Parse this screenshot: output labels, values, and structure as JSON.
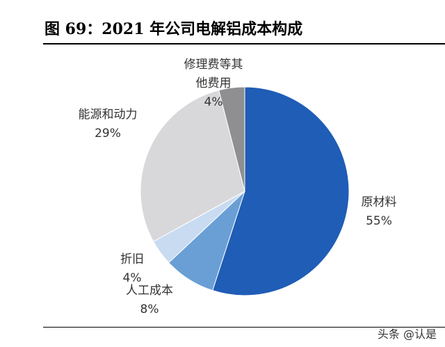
{
  "chart_data": {
    "type": "pie",
    "title": "图 69：2021 年公司电解铝成本构成",
    "categories": [
      "原材料",
      "人工成本",
      "折旧",
      "能源和动力",
      "修理费等其他费用"
    ],
    "values": [
      55,
      8,
      4,
      29,
      4
    ],
    "value_labels": [
      "55%",
      "8%",
      "4%",
      "29%",
      "4%"
    ],
    "colors": [
      "#1f5db6",
      "#6a9fd5",
      "#c8dbf1",
      "#d8d8da",
      "#8f8f91"
    ]
  },
  "watermark": "头条 @认是"
}
